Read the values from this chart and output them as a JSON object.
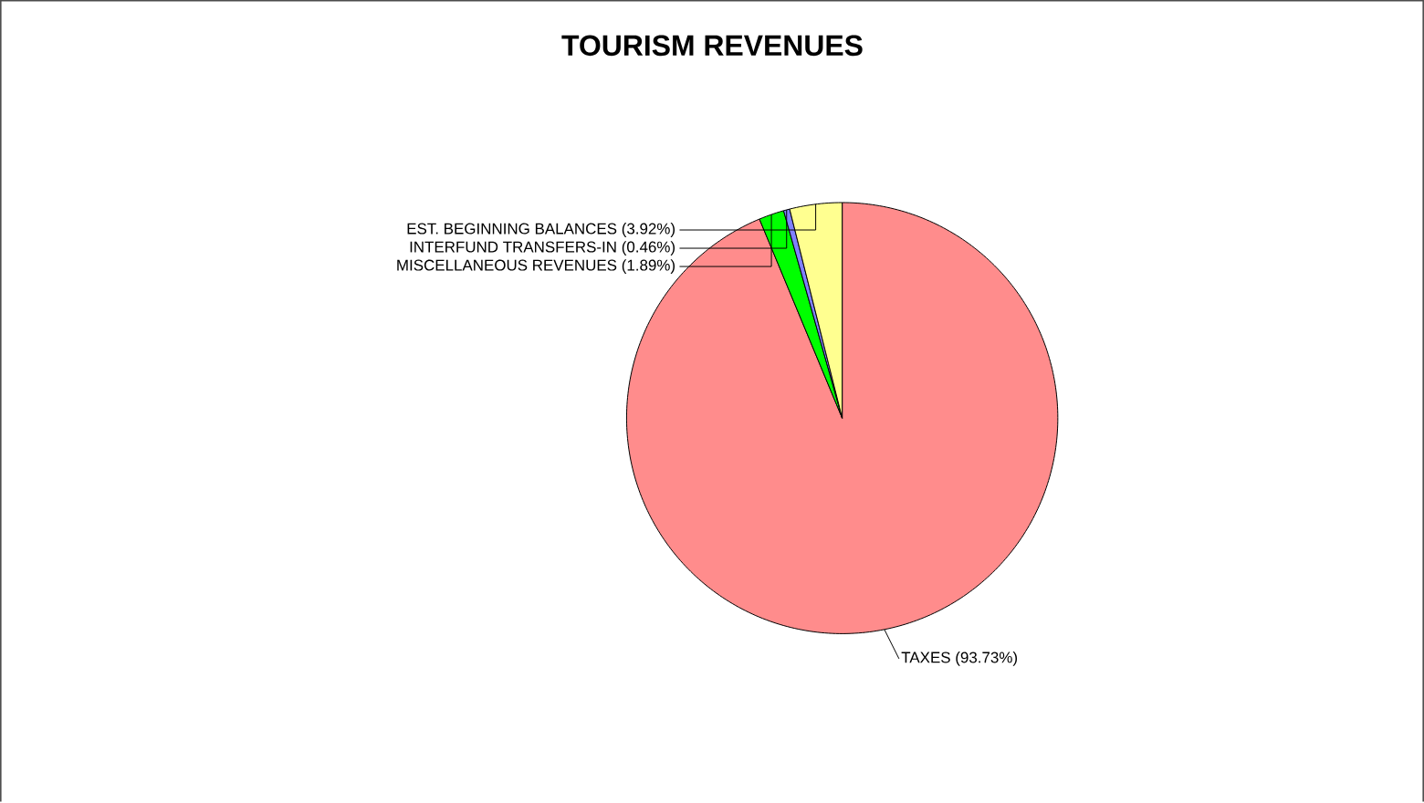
{
  "chart_data": {
    "type": "pie",
    "title": "TOURISM REVENUES",
    "categories": [
      "TAXES",
      "MISCELLANEOUS REVENUES",
      "INTERFUND TRANSFERS-IN",
      "EST. BEGINNING BALANCES"
    ],
    "values": [
      93.73,
      1.89,
      0.46,
      3.92
    ],
    "value_labels": [
      "(93.73%)",
      "(1.89%)",
      "(0.46%)",
      "(3.92%)"
    ],
    "colors": [
      "#ff8c8c",
      "#00ff00",
      "#8080ff",
      "#ffff90"
    ]
  }
}
